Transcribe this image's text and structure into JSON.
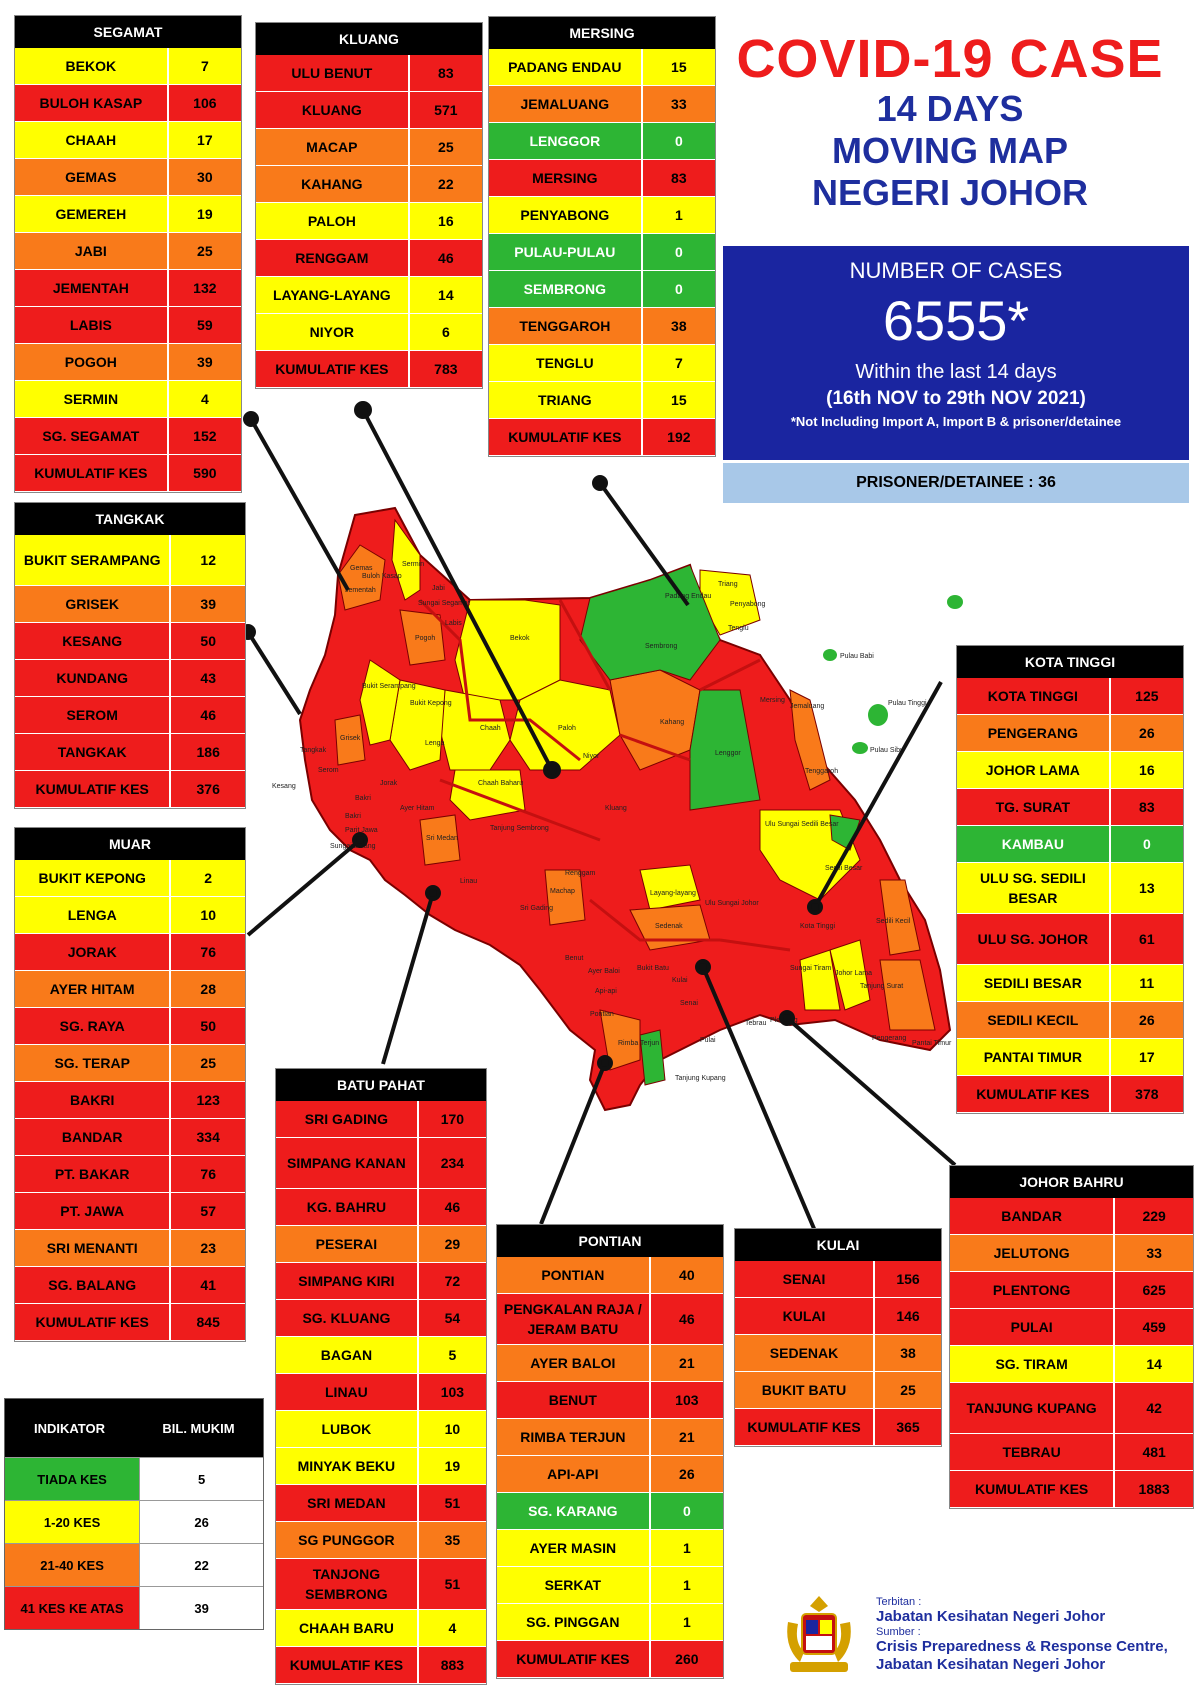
{
  "title": {
    "main": "COVID-19 CASE",
    "line2": "14 DAYS",
    "line3": "MOVING MAP",
    "line4": "NEGERI JOHOR"
  },
  "summary": {
    "label": "NUMBER OF CASES",
    "number": "6555*",
    "period": "Within the last 14 days",
    "dates": "(16th NOV to 29th NOV 2021)",
    "note": "*Not Including Import A, Import B & prisoner/detainee",
    "prisoner": "PRISONER/DETAINEE : 36"
  },
  "colors": {
    "green": "#2db534",
    "yellow": "#ffff00",
    "orange": "#f97a1a",
    "red": "#ee1c1c",
    "title_red": "#ee1c1c",
    "title_blue": "#1e2e9e",
    "panel_blue": "#1a25a0",
    "prisoner_bg": "#a8c8e8"
  },
  "districts": {
    "segamat": {
      "name": "SEGAMAT",
      "rows": [
        {
          "name": "BEKOK",
          "value": "7",
          "level": "yellow"
        },
        {
          "name": "BULOH KASAP",
          "value": "106",
          "level": "red"
        },
        {
          "name": "CHAAH",
          "value": "17",
          "level": "yellow"
        },
        {
          "name": "GEMAS",
          "value": "30",
          "level": "orange"
        },
        {
          "name": "GEMEREH",
          "value": "19",
          "level": "yellow"
        },
        {
          "name": "JABI",
          "value": "25",
          "level": "orange"
        },
        {
          "name": "JEMENTAH",
          "value": "132",
          "level": "red"
        },
        {
          "name": "LABIS",
          "value": "59",
          "level": "red"
        },
        {
          "name": "POGOH",
          "value": "39",
          "level": "orange"
        },
        {
          "name": "SERMIN",
          "value": "4",
          "level": "yellow"
        },
        {
          "name": "SG. SEGAMAT",
          "value": "152",
          "level": "red"
        }
      ],
      "total": {
        "name": "KUMULATIF KES",
        "value": "590"
      }
    },
    "kluang": {
      "name": "KLUANG",
      "rows": [
        {
          "name": "ULU BENUT",
          "value": "83",
          "level": "red"
        },
        {
          "name": "KLUANG",
          "value": "571",
          "level": "red"
        },
        {
          "name": "MACAP",
          "value": "25",
          "level": "orange"
        },
        {
          "name": "KAHANG",
          "value": "22",
          "level": "orange"
        },
        {
          "name": "PALOH",
          "value": "16",
          "level": "yellow"
        },
        {
          "name": "RENGGAM",
          "value": "46",
          "level": "red"
        },
        {
          "name": "LAYANG-LAYANG",
          "value": "14",
          "level": "yellow"
        },
        {
          "name": "NIYOR",
          "value": "6",
          "level": "yellow"
        }
      ],
      "total": {
        "name": "KUMULATIF KES",
        "value": "783"
      }
    },
    "mersing": {
      "name": "MERSING",
      "rows": [
        {
          "name": "PADANG ENDAU",
          "value": "15",
          "level": "yellow"
        },
        {
          "name": "JEMALUANG",
          "value": "33",
          "level": "orange"
        },
        {
          "name": "LENGGOR",
          "value": "0",
          "level": "green"
        },
        {
          "name": "MERSING",
          "value": "83",
          "level": "red"
        },
        {
          "name": "PENYABONG",
          "value": "1",
          "level": "yellow"
        },
        {
          "name": "PULAU-PULAU",
          "value": "0",
          "level": "green"
        },
        {
          "name": "SEMBRONG",
          "value": "0",
          "level": "green"
        },
        {
          "name": "TENGGAROH",
          "value": "38",
          "level": "orange"
        },
        {
          "name": "TENGLU",
          "value": "7",
          "level": "yellow"
        },
        {
          "name": "TRIANG",
          "value": "15",
          "level": "yellow"
        }
      ],
      "total": {
        "name": "KUMULATIF KES",
        "value": "192"
      }
    },
    "tangkak": {
      "name": "TANGKAK",
      "rows": [
        {
          "name": "BUKIT SERAMPANG",
          "value": "12",
          "level": "yellow",
          "tall": true
        },
        {
          "name": "GRISEK",
          "value": "39",
          "level": "orange"
        },
        {
          "name": "KESANG",
          "value": "50",
          "level": "red"
        },
        {
          "name": "KUNDANG",
          "value": "43",
          "level": "red"
        },
        {
          "name": "SEROM",
          "value": "46",
          "level": "red"
        },
        {
          "name": "TANGKAK",
          "value": "186",
          "level": "red"
        }
      ],
      "total": {
        "name": "KUMULATIF KES",
        "value": "376"
      }
    },
    "muar": {
      "name": "MUAR",
      "rows": [
        {
          "name": "BUKIT KEPONG",
          "value": "2",
          "level": "yellow"
        },
        {
          "name": "LENGA",
          "value": "10",
          "level": "yellow"
        },
        {
          "name": "JORAK",
          "value": "76",
          "level": "red"
        },
        {
          "name": "AYER HITAM",
          "value": "28",
          "level": "orange"
        },
        {
          "name": "SG. RAYA",
          "value": "50",
          "level": "red"
        },
        {
          "name": "SG. TERAP",
          "value": "25",
          "level": "orange"
        },
        {
          "name": "BAKRI",
          "value": "123",
          "level": "red"
        },
        {
          "name": "BANDAR",
          "value": "334",
          "level": "red"
        },
        {
          "name": "PT. BAKAR",
          "value": "76",
          "level": "red"
        },
        {
          "name": "PT. JAWA",
          "value": "57",
          "level": "red"
        },
        {
          "name": "SRI MENANTI",
          "value": "23",
          "level": "orange"
        },
        {
          "name": "SG. BALANG",
          "value": "41",
          "level": "red"
        }
      ],
      "total": {
        "name": "KUMULATIF KES",
        "value": "845"
      }
    },
    "batu_pahat": {
      "name": "BATU PAHAT",
      "rows": [
        {
          "name": "SRI GADING",
          "value": "170",
          "level": "red"
        },
        {
          "name": "SIMPANG KANAN",
          "value": "234",
          "level": "red",
          "tall": true
        },
        {
          "name": "KG. BAHRU",
          "value": "46",
          "level": "red"
        },
        {
          "name": "PESERAI",
          "value": "29",
          "level": "orange"
        },
        {
          "name": "SIMPANG KIRI",
          "value": "72",
          "level": "red"
        },
        {
          "name": "SG. KLUANG",
          "value": "54",
          "level": "red"
        },
        {
          "name": "BAGAN",
          "value": "5",
          "level": "yellow"
        },
        {
          "name": "LINAU",
          "value": "103",
          "level": "red"
        },
        {
          "name": "LUBOK",
          "value": "10",
          "level": "yellow"
        },
        {
          "name": "MINYAK BEKU",
          "value": "19",
          "level": "yellow"
        },
        {
          "name": "SRI MEDAN",
          "value": "51",
          "level": "red"
        },
        {
          "name": "SG PUNGGOR",
          "value": "35",
          "level": "orange"
        },
        {
          "name": "TANJONG SEMBRONG",
          "value": "51",
          "level": "red",
          "tall": true
        },
        {
          "name": "CHAAH BARU",
          "value": "4",
          "level": "yellow"
        }
      ],
      "total": {
        "name": "KUMULATIF KES",
        "value": "883"
      }
    },
    "pontian": {
      "name": "PONTIAN",
      "rows": [
        {
          "name": "PONTIAN",
          "value": "40",
          "level": "orange"
        },
        {
          "name": "PENGKALAN RAJA / JERAM BATU",
          "value": "46",
          "level": "red",
          "tall": true
        },
        {
          "name": "AYER BALOI",
          "value": "21",
          "level": "orange"
        },
        {
          "name": "BENUT",
          "value": "103",
          "level": "red"
        },
        {
          "name": "RIMBA TERJUN",
          "value": "21",
          "level": "orange"
        },
        {
          "name": "API-API",
          "value": "26",
          "level": "orange"
        },
        {
          "name": "SG. KARANG",
          "value": "0",
          "level": "green"
        },
        {
          "name": "AYER MASIN",
          "value": "1",
          "level": "yellow"
        },
        {
          "name": "SERKAT",
          "value": "1",
          "level": "yellow"
        },
        {
          "name": "SG. PINGGAN",
          "value": "1",
          "level": "yellow"
        }
      ],
      "total": {
        "name": "KUMULATIF KES",
        "value": "260"
      }
    },
    "kulai": {
      "name": "KULAI",
      "rows": [
        {
          "name": "SENAI",
          "value": "156",
          "level": "red"
        },
        {
          "name": "KULAI",
          "value": "146",
          "level": "red"
        },
        {
          "name": "SEDENAK",
          "value": "38",
          "level": "orange"
        },
        {
          "name": "BUKIT BATU",
          "value": "25",
          "level": "orange"
        }
      ],
      "total": {
        "name": "KUMULATIF KES",
        "value": "365"
      }
    },
    "kota_tinggi": {
      "name": "KOTA TINGGI",
      "rows": [
        {
          "name": "KOTA TINGGI",
          "value": "125",
          "level": "red"
        },
        {
          "name": "PENGERANG",
          "value": "26",
          "level": "orange"
        },
        {
          "name": "JOHOR LAMA",
          "value": "16",
          "level": "yellow"
        },
        {
          "name": "TG. SURAT",
          "value": "83",
          "level": "red"
        },
        {
          "name": "KAMBAU",
          "value": "0",
          "level": "green"
        },
        {
          "name": "ULU SG. SEDILI BESAR",
          "value": "13",
          "level": "yellow",
          "tall": true
        },
        {
          "name": "ULU  SG. JOHOR",
          "value": "61",
          "level": "red",
          "tall": true
        },
        {
          "name": "SEDILI BESAR",
          "value": "11",
          "level": "yellow"
        },
        {
          "name": "SEDILI KECIL",
          "value": "26",
          "level": "orange"
        },
        {
          "name": "PANTAI TIMUR",
          "value": "17",
          "level": "yellow"
        }
      ],
      "total": {
        "name": "KUMULATIF KES",
        "value": "378"
      }
    },
    "johor_bahru": {
      "name": "JOHOR BAHRU",
      "rows": [
        {
          "name": "BANDAR",
          "value": "229",
          "level": "red"
        },
        {
          "name": "JELUTONG",
          "value": "33",
          "level": "orange"
        },
        {
          "name": "PLENTONG",
          "value": "625",
          "level": "red"
        },
        {
          "name": "PULAI",
          "value": "459",
          "level": "red"
        },
        {
          "name": "SG. TIRAM",
          "value": "14",
          "level": "yellow"
        },
        {
          "name": "TANJUNG KUPANG",
          "value": "42",
          "level": "red",
          "tall": true
        },
        {
          "name": "TEBRAU",
          "value": "481",
          "level": "red"
        }
      ],
      "total": {
        "name": "KUMULATIF KES",
        "value": "1883"
      }
    }
  },
  "legend": {
    "header_indicator": "INDIKATOR",
    "header_count": "BIL. MUKIM",
    "rows": [
      {
        "label": "TIADA KES",
        "count": "5",
        "level": "green"
      },
      {
        "label": "1-20 KES",
        "count": "26",
        "level": "yellow"
      },
      {
        "label": "21-40 KES",
        "count": "22",
        "level": "orange"
      },
      {
        "label": "41 KES KE ATAS",
        "count": "39",
        "level": "red"
      }
    ]
  },
  "footer": {
    "published_label": "Terbitan :",
    "publisher": "Jabatan Kesihatan Negeri Johor",
    "source_label": "Sumber :",
    "source_line1": "Crisis Preparedness & Response Centre,",
    "source_line2": "Jabatan Kesihatan Negeri Johor"
  },
  "map_labels": {
    "gemas": "Gemas",
    "buloh_kasap": "Buloh Kasap",
    "sermin": "Sermin",
    "jabi": "Jabi",
    "bekok": "Bekok",
    "sembrong": "Sembrong",
    "padang_endau": "Padang Endau",
    "triang": "Triang",
    "penyabong": "Penyabong",
    "tenglu": "Tenglu",
    "pulau_babi": "Pulau Babi",
    "pulau_tinggi": "Pulau Tinggi",
    "pulau_sibu": "Pulau Sibu",
    "jemaluang": "Jemaluang",
    "tenggaroh": "Tenggaroh",
    "mersing": "Mersing",
    "lenggor": "Lenggor",
    "kahang": "Kahang",
    "paloh": "Paloh",
    "niyor": "Niyor",
    "chaah": "Chaah",
    "chaah_baharu": "Chaah Baharu",
    "lenga": "Lenga",
    "bukit_kepong": "Bukit Kepong",
    "bukit_serampang": "Bukit Serampang",
    "grisek": "Grisek",
    "jementah": "Jementah",
    "kesang": "Kesang",
    "labis": "Labis",
    "pogoh": "Pogoh",
    "sungai_segamat": "Sungai Segamat",
    "kluang": "Kluang",
    "renggam": "Renggam",
    "sri_medan": "Sri Medan",
    "ayer_hitam": "Ayer Hitam",
    "linau": "Linau",
    "tanjung_sembrong": "Tanjung Sembrong",
    "bakri": "Bakri",
    "jorak": "Jorak",
    "ulu_sungai_johor": "Ulu Sungai Johor",
    "ulu_sungai_sedili_besar": "Ulu Sungai Sedili Besar",
    "sedili_besar": "Sedili Besar",
    "sedili_kecil": "Sedili Kecil",
    "kota_tinggi": "Kota Tinggi",
    "johor_lama": "Johor Lama",
    "tanjung_surat": "Tanjung Surat",
    "pengerang": "Pengerang",
    "pantai_timur": "Pantai Timur",
    "sungai_tiram": "Sungai Tiram",
    "layang_layang": "Layang-layang",
    "sedenak": "Sedenak",
    "bukit_batu": "Bukit Batu",
    "senai": "Senai",
    "kulai": "Kulai",
    "pulai": "Pulai",
    "tebrau": "Tebrau",
    "plentong": "Plentong",
    "tanjung_kupang": "Tanjung Kupang",
    "pontian": "Pontian",
    "api_api": "Api-api",
    "benut": "Benut",
    "machap": "Machap",
    "sri_gading": "Sri Gading",
    "ayer_baloi": "Ayer Baloi",
    "rimba_terjun": "Rimba Terjun",
    "tangkak": "Tangkak",
    "serom": "Serom",
    "sungai_balang": "Sungai Balang",
    "bakri_muar": "Bakri",
    "parit_jawa": "Parit Jawa"
  }
}
